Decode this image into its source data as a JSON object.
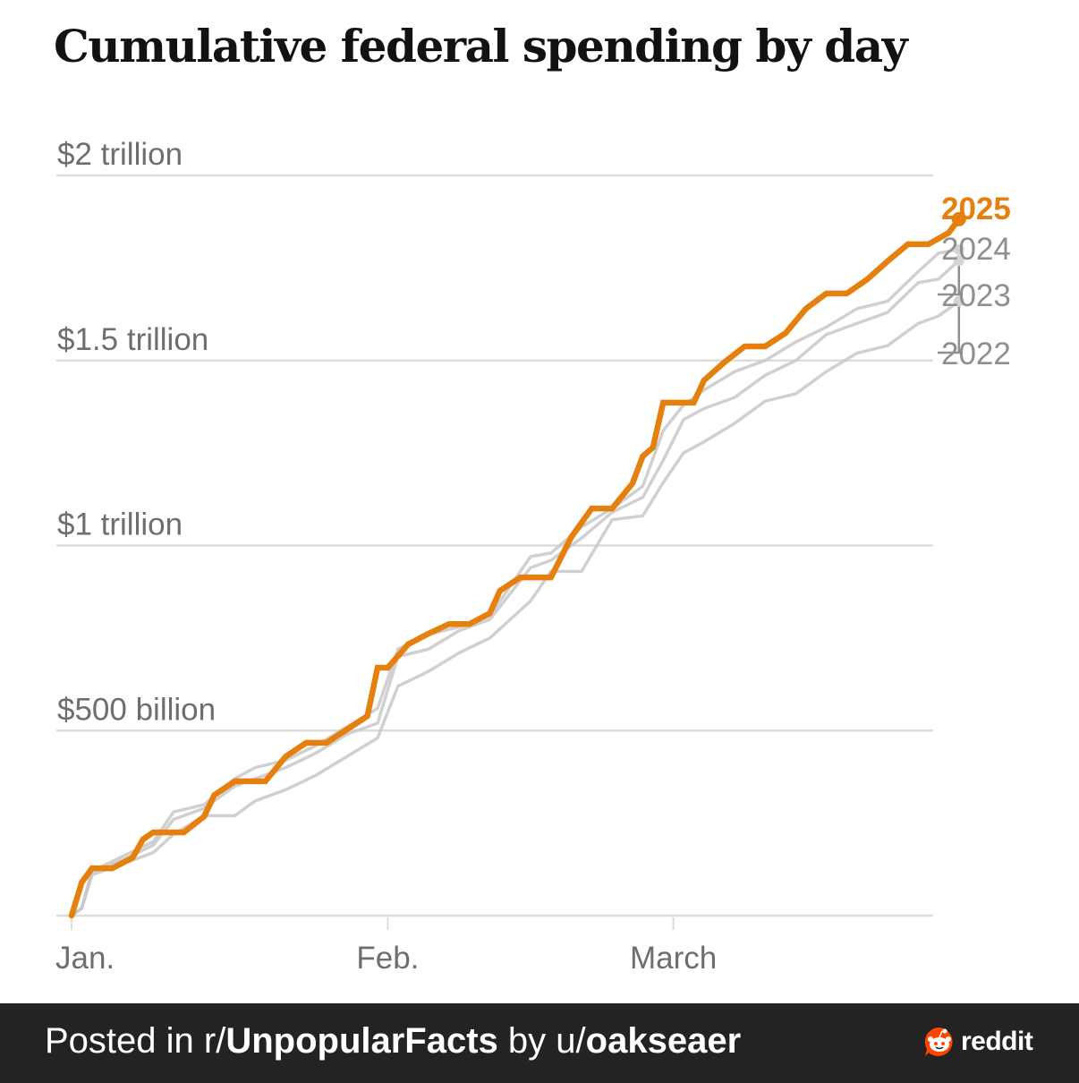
{
  "chart_data": {
    "type": "line",
    "title": "Cumulative federal spending by day",
    "xlabel": "",
    "ylabel": "",
    "x_unit": "days since Jan. 1",
    "xlim": [
      0,
      87
    ],
    "ylim": [
      0,
      2.0
    ],
    "y_unit": "trillion USD",
    "grid": true,
    "y_ticks": [
      {
        "value": 0,
        "label": ""
      },
      {
        "value": 0.5,
        "label": "$500 billion"
      },
      {
        "value": 1.0,
        "label": "$1 trillion"
      },
      {
        "value": 1.5,
        "label": "$1.5 trillion"
      },
      {
        "value": 2.0,
        "label": "$2 trillion"
      }
    ],
    "x_ticks": [
      {
        "value": 0,
        "label": "Jan."
      },
      {
        "value": 31,
        "label": "Feb."
      },
      {
        "value": 59,
        "label": "March"
      }
    ],
    "legend": "direct-labels-right",
    "series": [
      {
        "name": "2025",
        "color": "#e5800f",
        "highlight": true,
        "x": [
          0,
          1,
          2,
          4,
          6,
          7,
          8,
          11,
          13,
          14,
          16,
          19,
          21,
          23,
          25,
          27,
          29,
          30,
          31,
          33,
          35,
          37,
          39,
          41,
          42,
          44,
          47,
          49,
          51,
          53,
          55,
          56,
          57,
          58,
          61,
          62,
          64,
          66,
          68,
          70,
          72,
          74,
          76,
          78,
          80,
          82,
          84,
          86,
          87
        ],
        "values": [
          0,
          0.09,
          0.128,
          0.128,
          0.157,
          0.206,
          0.225,
          0.225,
          0.268,
          0.326,
          0.363,
          0.363,
          0.43,
          0.467,
          0.467,
          0.503,
          0.539,
          0.67,
          0.67,
          0.733,
          0.762,
          0.788,
          0.788,
          0.817,
          0.878,
          0.914,
          0.914,
          1.023,
          1.1,
          1.1,
          1.168,
          1.241,
          1.265,
          1.386,
          1.386,
          1.446,
          1.495,
          1.538,
          1.538,
          1.574,
          1.64,
          1.681,
          1.681,
          1.719,
          1.768,
          1.814,
          1.814,
          1.845,
          1.882
        ]
      },
      {
        "name": "2024",
        "color": "#c8c8c8",
        "highlight": false,
        "x": [
          0,
          1,
          2,
          5,
          8,
          10,
          13,
          16,
          18,
          21,
          24,
          27,
          30,
          32,
          35,
          38,
          41,
          45,
          47,
          50,
          53,
          56,
          58,
          60,
          62,
          65,
          68,
          71,
          74,
          77,
          80,
          83,
          85,
          87
        ],
        "values": [
          0,
          0.02,
          0.12,
          0.16,
          0.2,
          0.28,
          0.3,
          0.37,
          0.4,
          0.42,
          0.46,
          0.51,
          0.56,
          0.72,
          0.76,
          0.78,
          0.81,
          0.97,
          0.98,
          1.05,
          1.1,
          1.16,
          1.31,
          1.38,
          1.42,
          1.47,
          1.5,
          1.55,
          1.59,
          1.64,
          1.66,
          1.74,
          1.79,
          1.8
        ]
      },
      {
        "name": "2023",
        "color": "#c8c8c8",
        "highlight": false,
        "x": [
          0,
          1,
          2,
          5,
          8,
          10,
          13,
          16,
          18,
          21,
          24,
          27,
          30,
          32,
          35,
          38,
          41,
          45,
          47,
          50,
          53,
          56,
          58,
          60,
          62,
          65,
          68,
          71,
          74,
          77,
          80,
          83,
          85,
          87
        ],
        "values": [
          0,
          0.02,
          0.12,
          0.15,
          0.19,
          0.26,
          0.29,
          0.35,
          0.37,
          0.4,
          0.44,
          0.49,
          0.52,
          0.7,
          0.72,
          0.77,
          0.8,
          0.94,
          0.96,
          1.02,
          1.09,
          1.13,
          1.23,
          1.34,
          1.37,
          1.4,
          1.46,
          1.5,
          1.57,
          1.6,
          1.63,
          1.71,
          1.72,
          1.77
        ]
      },
      {
        "name": "2022",
        "color": "#c8c8c8",
        "highlight": false,
        "x": [
          0,
          1,
          2,
          5,
          8,
          10,
          13,
          16,
          18,
          21,
          24,
          27,
          30,
          32,
          35,
          38,
          41,
          45,
          47,
          50,
          53,
          56,
          58,
          60,
          62,
          65,
          68,
          71,
          74,
          77,
          80,
          83,
          85,
          87
        ],
        "values": [
          0,
          0.02,
          0.11,
          0.14,
          0.17,
          0.22,
          0.27,
          0.27,
          0.31,
          0.34,
          0.38,
          0.43,
          0.48,
          0.62,
          0.66,
          0.71,
          0.75,
          0.85,
          0.93,
          0.93,
          1.07,
          1.08,
          1.17,
          1.25,
          1.28,
          1.33,
          1.39,
          1.41,
          1.47,
          1.52,
          1.54,
          1.6,
          1.62,
          1.66
        ]
      }
    ]
  },
  "labels": {
    "series_labels": [
      "2025",
      "2024",
      "2023",
      "2022"
    ]
  },
  "footer": {
    "prefix": "Posted in r/",
    "subreddit": "UnpopularFacts",
    "by": " by u/",
    "username": "oakseaer",
    "brand": "reddit"
  },
  "colors": {
    "accent": "#e5800f",
    "muted_line": "#c8c8c8",
    "grid": "#dcdcdc",
    "axis_text": "#6e6e6e",
    "footer_bg": "#232323",
    "reddit_orange": "#ff4500"
  }
}
